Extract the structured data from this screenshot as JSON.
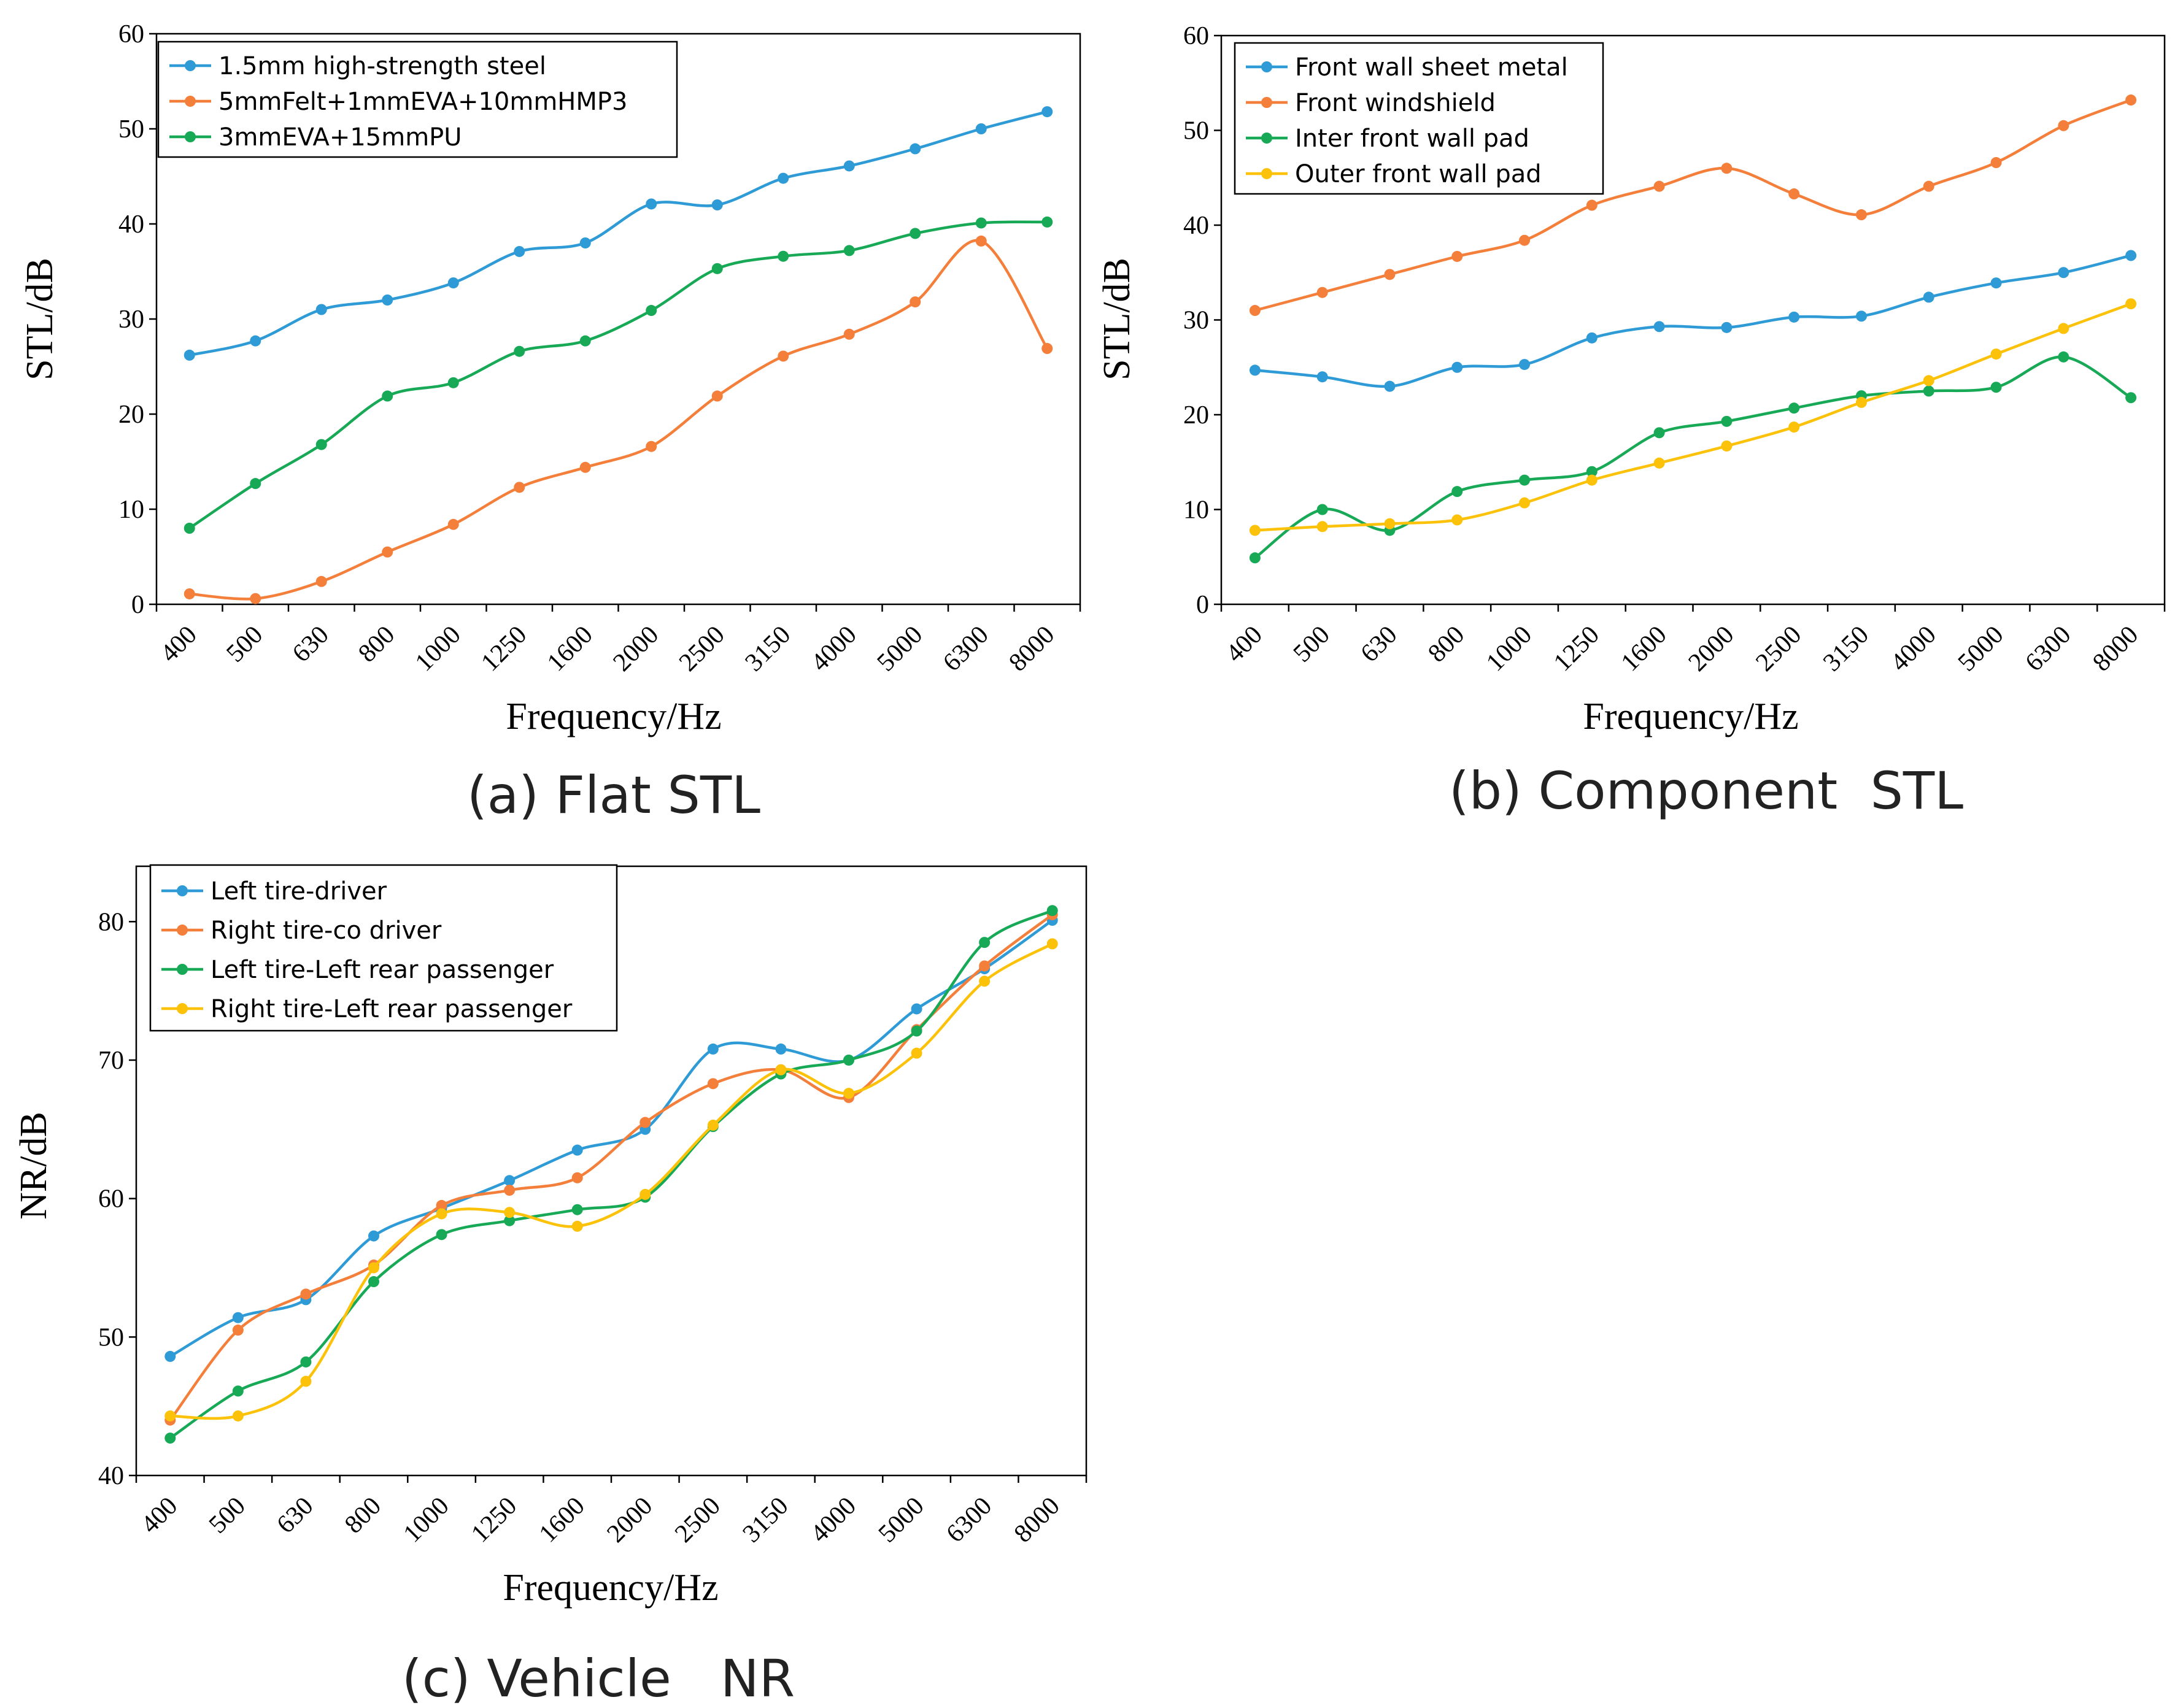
{
  "colors": {
    "blue": "#2f9bd6",
    "orange": "#f47f3b",
    "green": "#18a957",
    "yellow": "#fcc20a",
    "axis": "#000000"
  },
  "chart_data": [
    {
      "id": "a",
      "type": "line",
      "caption": "(a) Flat STL",
      "title": "",
      "xlabel": "Frequency/Hz",
      "ylabel": "STL/dB",
      "ylim": [
        0,
        60
      ],
      "yticks": [
        0,
        10,
        20,
        30,
        40,
        50,
        60
      ],
      "grid": false,
      "legend_position": "top-left",
      "categories": [
        "400",
        "500",
        "630",
        "800",
        "1000",
        "1250",
        "1600",
        "2000",
        "2500",
        "3150",
        "4000",
        "5000",
        "6300",
        "8000"
      ],
      "series": [
        {
          "name": "1.5mm high-strength steel",
          "color": "#2f9bd6",
          "values": [
            26.2,
            27.7,
            31.0,
            32.0,
            33.8,
            37.1,
            38.0,
            42.1,
            42.0,
            44.8,
            46.1,
            47.9,
            50.0,
            51.8
          ]
        },
        {
          "name": "5mmFelt+1mmEVA+10mmHMP3",
          "color": "#f47f3b",
          "values": [
            1.1,
            0.6,
            2.4,
            5.5,
            8.4,
            12.3,
            14.4,
            16.6,
            21.9,
            26.1,
            28.4,
            31.8,
            38.2,
            26.9
          ]
        },
        {
          "name": "3mmEVA+15mmPU",
          "color": "#18a957",
          "values": [
            8.0,
            12.7,
            16.8,
            21.9,
            23.3,
            26.6,
            27.7,
            30.9,
            35.3,
            36.6,
            37.2,
            39.0,
            40.1,
            40.2
          ]
        }
      ]
    },
    {
      "id": "b",
      "type": "line",
      "caption": "(b) Component  STL",
      "title": "",
      "xlabel": "Frequency/Hz",
      "ylabel": "STL/dB",
      "ylim": [
        0,
        60
      ],
      "yticks": [
        0,
        10,
        20,
        30,
        40,
        50,
        60
      ],
      "grid": false,
      "legend_position": "top-left",
      "categories": [
        "400",
        "500",
        "630",
        "800",
        "1000",
        "1250",
        "1600",
        "2000",
        "2500",
        "3150",
        "4000",
        "5000",
        "6300",
        "8000"
      ],
      "series": [
        {
          "name": "Front wall sheet metal",
          "color": "#2f9bd6",
          "values": [
            24.7,
            24.0,
            23.0,
            25.0,
            25.3,
            28.1,
            29.3,
            29.2,
            30.3,
            30.4,
            32.4,
            33.9,
            35.0,
            36.8
          ]
        },
        {
          "name": "Front windshield",
          "color": "#f47f3b",
          "values": [
            31.0,
            32.9,
            34.8,
            36.7,
            38.4,
            42.1,
            44.1,
            46.0,
            43.3,
            41.1,
            44.1,
            46.6,
            50.5,
            53.2
          ]
        },
        {
          "name": "Inter front wall pad",
          "color": "#18a957",
          "values": [
            4.9,
            10.0,
            7.8,
            11.9,
            13.1,
            14.0,
            18.1,
            19.3,
            20.7,
            22.0,
            22.5,
            22.9,
            26.1,
            21.8
          ]
        },
        {
          "name": "Outer front wall pad",
          "color": "#fcc20a",
          "values": [
            7.8,
            8.2,
            8.5,
            8.9,
            10.7,
            13.1,
            14.9,
            16.7,
            18.7,
            21.3,
            23.6,
            26.4,
            29.1,
            31.7
          ]
        }
      ]
    },
    {
      "id": "c",
      "type": "line",
      "caption": "(c) Vehicle   NR",
      "title": "",
      "xlabel": "Frequency/Hz",
      "ylabel": "NR/dB",
      "ylim": [
        40,
        84
      ],
      "yticks": [
        40,
        50,
        60,
        70,
        80
      ],
      "grid": false,
      "legend_position": "top-left",
      "categories": [
        "400",
        "500",
        "630",
        "800",
        "1000",
        "1250",
        "1600",
        "2000",
        "2500",
        "3150",
        "4000",
        "5000",
        "6300",
        "8000"
      ],
      "series": [
        {
          "name": "Left tire-driver",
          "color": "#2f9bd6",
          "values": [
            48.6,
            51.4,
            52.7,
            57.3,
            59.3,
            61.3,
            63.5,
            65.0,
            70.8,
            70.8,
            70.0,
            73.7,
            76.6,
            80.1
          ]
        },
        {
          "name": "Right tire-co driver",
          "color": "#f47f3b",
          "values": [
            44.0,
            50.5,
            53.1,
            55.2,
            59.5,
            60.6,
            61.5,
            65.5,
            68.3,
            69.3,
            67.3,
            72.2,
            76.8,
            80.5
          ]
        },
        {
          "name": "Left tire-Left rear passenger",
          "color": "#18a957",
          "values": [
            42.7,
            46.1,
            48.2,
            54.0,
            57.4,
            58.4,
            59.2,
            60.1,
            65.2,
            69.0,
            70.0,
            72.1,
            78.5,
            80.8
          ]
        },
        {
          "name": "Right tire-Left rear passenger",
          "color": "#fcc20a",
          "values": [
            44.3,
            44.3,
            46.8,
            55.0,
            58.9,
            59.0,
            58.0,
            60.3,
            65.3,
            69.3,
            67.6,
            70.5,
            75.7,
            78.4
          ]
        }
      ]
    }
  ]
}
